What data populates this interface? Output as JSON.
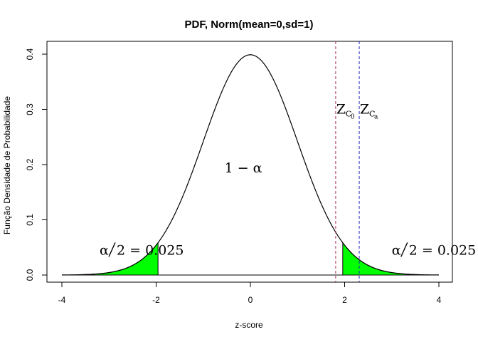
{
  "chart_data": {
    "type": "area",
    "title": "PDF, Norm(mean=0,sd=1)",
    "xlabel": "z-score",
    "ylabel": "Função Densidade de Probabilidade",
    "xlim": [
      -4,
      4
    ],
    "ylim": [
      0,
      0.4
    ],
    "xticks": [
      "-4",
      "-2",
      "0",
      "2",
      "4"
    ],
    "yticks": [
      "0.0",
      "0.1",
      "0.2",
      "0.3",
      "0.4"
    ],
    "distribution": {
      "mean": 0,
      "sd": 1
    },
    "tail_regions": [
      {
        "from": -3.6,
        "to": -1.96,
        "color": "#00ff00"
      },
      {
        "from": 1.96,
        "to": 3.6,
        "color": "#00ff00"
      }
    ],
    "vlines": [
      {
        "x": 1.81,
        "color": "#b03060",
        "dash": true,
        "label": "Z",
        "label_sub": "C",
        "label_subsub": "0"
      },
      {
        "x": 2.31,
        "color": "#2020c0",
        "dash": true,
        "label": "Z",
        "label_sub": "C",
        "label_subsub": "a"
      }
    ],
    "annotations": {
      "left_tail": {
        "alpha": "α",
        "slash": "/",
        "rest": "2 = 0.025",
        "x": -3.2,
        "y": 0.046
      },
      "right_tail": {
        "alpha": "α",
        "slash": "/",
        "rest": "2 = 0.025",
        "x": 3.0,
        "y": 0.046
      },
      "center": {
        "one": "1 − ",
        "alpha": "α",
        "x": -0.15,
        "y": 0.195
      }
    },
    "grid": false,
    "curve_color": "#000000",
    "baseline_color": "#000000"
  }
}
